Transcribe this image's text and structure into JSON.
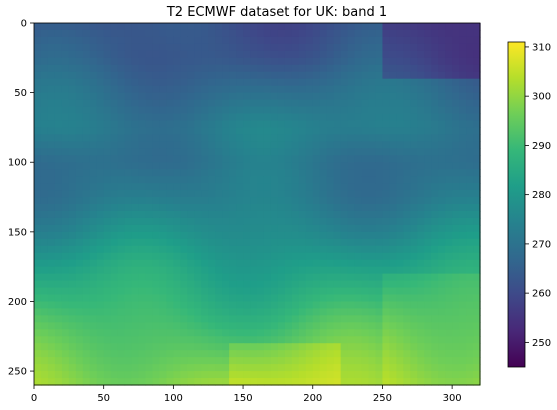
{
  "chart_data": {
    "type": "heatmap",
    "title": "T2 ECMWF dataset for UK: band 1",
    "xlabel": "",
    "ylabel": "",
    "x_ticks": [
      0,
      50,
      100,
      150,
      200,
      250,
      300
    ],
    "y_ticks": [
      0,
      50,
      100,
      150,
      200,
      250
    ],
    "x_range": [
      0,
      320
    ],
    "y_range": [
      0,
      260
    ],
    "y_inverted": true,
    "colormap": "viridis",
    "colorbar": {
      "range": [
        245,
        311
      ],
      "ticks": [
        250,
        260,
        270,
        280,
        290,
        300,
        310
      ]
    },
    "grid": false,
    "value_field_estimate": {
      "description_rows": [
        0,
        25,
        50,
        75,
        100,
        125,
        150,
        175,
        200,
        225,
        260
      ],
      "row_means": [
        262,
        264,
        269,
        273,
        270,
        272,
        277,
        283,
        288,
        293,
        300
      ]
    }
  },
  "colors": {
    "viridis": [
      "#440154",
      "#482878",
      "#3e4989",
      "#31688e",
      "#26828e",
      "#1f9e89",
      "#35b779",
      "#6ece58",
      "#b5de2b",
      "#fde725"
    ]
  }
}
